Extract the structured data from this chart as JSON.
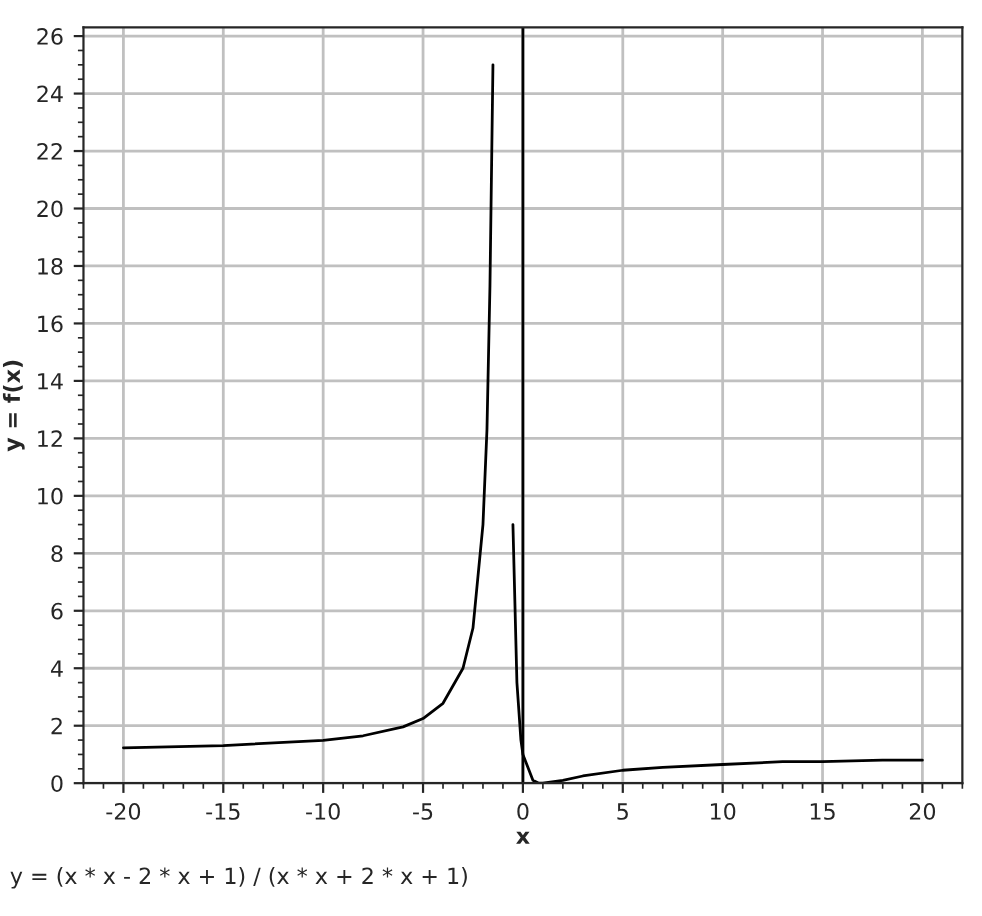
{
  "chart_data": {
    "type": "line",
    "xlabel": "x",
    "ylabel": "y = f(x)",
    "annotations": [
      "y = (x * x - 2 * x + 1) / (x * x + 2 * x + 1)"
    ],
    "x": [
      -20,
      -15,
      -10,
      -8,
      -6,
      -5,
      -4,
      -3,
      -2.5,
      -2,
      -1.8,
      -1.65,
      -1.5,
      -1,
      -0.5,
      -0.3,
      -0.1,
      0,
      0.5,
      0.8,
      1,
      2,
      3,
      5,
      7,
      10,
      13,
      15,
      18,
      20
    ],
    "series": [
      {
        "color": "#000000",
        "values": [
          1.23,
          1.31,
          1.49,
          1.65,
          1.96,
          2.25,
          2.78,
          4,
          5.4,
          9,
          12.3,
          17.3,
          25,
          null,
          9,
          3.5,
          1.5,
          1,
          0.1,
          0,
          0,
          0.1,
          0.25,
          0.45,
          0.55,
          0.65,
          0.75,
          0.75,
          0.8,
          0.8
        ]
      }
    ],
    "xlim": [
      -22,
      22
    ],
    "ylim": [
      0,
      26.3
    ],
    "xticks": [
      -20,
      -15,
      -10,
      -5,
      0,
      5,
      10,
      15,
      20
    ],
    "yticks": [
      0,
      2,
      4,
      6,
      8,
      10,
      12,
      14,
      16,
      18,
      20,
      22,
      24,
      26
    ],
    "ref_lines": [
      {
        "axis": "x",
        "value": 0,
        "color": "#000000"
      }
    ],
    "grid": true,
    "legend": false,
    "marker": "none",
    "line_style": "solid"
  }
}
